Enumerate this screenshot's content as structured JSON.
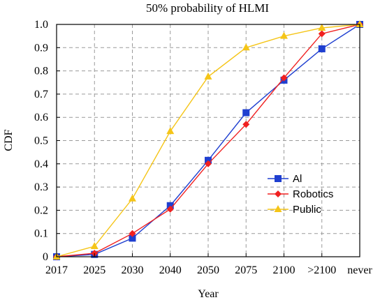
{
  "chart_data": {
    "type": "line",
    "title": "50% probability of HLMI",
    "xlabel": "Year",
    "ylabel": "CDF",
    "categories": [
      "2017",
      "2025",
      "2030",
      "2040",
      "2050",
      "2075",
      "2100",
      ">2100",
      "never"
    ],
    "ylim": [
      0,
      1.0
    ],
    "yticks": [
      "0",
      "0.1",
      "0.2",
      "0.3",
      "0.4",
      "0.5",
      "0.6",
      "0.7",
      "0.8",
      "0.9",
      "1.0"
    ],
    "grid": true,
    "legend_position": "center-right",
    "series": [
      {
        "name": "Al",
        "color": "#1f3fd0",
        "marker": "square",
        "values": [
          0.0,
          0.01,
          0.08,
          0.22,
          0.415,
          0.62,
          0.76,
          0.895,
          1.0
        ]
      },
      {
        "name": "Robotics",
        "color": "#f02020",
        "marker": "diamond",
        "values": [
          0.0,
          0.015,
          0.1,
          0.205,
          0.4,
          0.57,
          0.77,
          0.96,
          1.0
        ]
      },
      {
        "name": "Public",
        "color": "#f5c518",
        "marker": "triangle",
        "values": [
          0.0,
          0.045,
          0.25,
          0.54,
          0.775,
          0.9,
          0.95,
          0.985,
          1.0
        ]
      }
    ]
  }
}
